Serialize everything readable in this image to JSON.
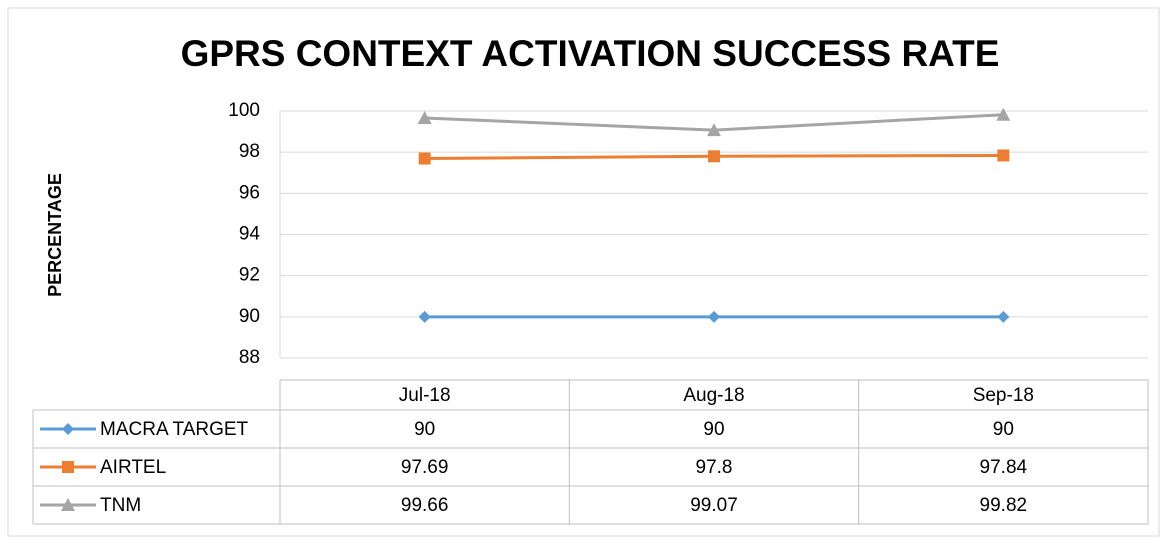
{
  "chart_data": {
    "type": "line",
    "title": "GPRS CONTEXT ACTIVATION SUCCESS RATE",
    "y_label": "PERCENTAGE",
    "categories": [
      "Jul-18",
      "Aug-18",
      "Sep-18"
    ],
    "series": [
      {
        "name": "MACRA TARGET",
        "color": "#5b9bd5",
        "marker": "diamond",
        "values": [
          90,
          90,
          90
        ]
      },
      {
        "name": "AIRTEL",
        "color": "#ed7d31",
        "marker": "square",
        "values": [
          97.69,
          97.8,
          97.84
        ]
      },
      {
        "name": "TNM",
        "color": "#a5a5a5",
        "marker": "triangle",
        "values": [
          99.66,
          99.07,
          99.82
        ]
      }
    ],
    "ylim": [
      88,
      100
    ],
    "yticks": [
      88,
      90,
      92,
      94,
      96,
      98,
      100
    ],
    "grid": true,
    "data_table": true
  }
}
